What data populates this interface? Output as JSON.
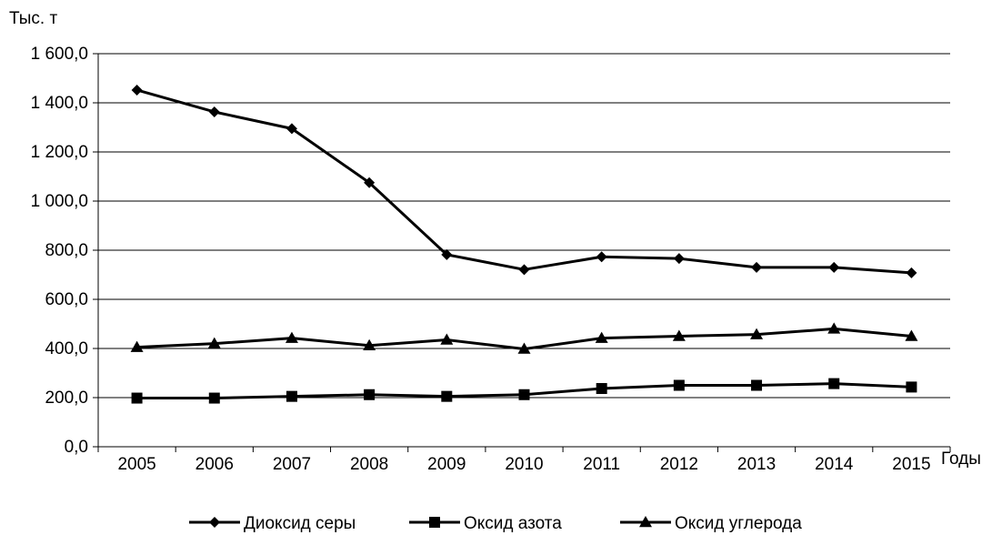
{
  "chart_data": {
    "type": "line",
    "ylabel": "Тыс. т",
    "xlabel": "Годы",
    "categories": [
      "2005",
      "2006",
      "2007",
      "2008",
      "2009",
      "2010",
      "2011",
      "2012",
      "2013",
      "2014",
      "2015"
    ],
    "ylim": [
      0,
      1600
    ],
    "yticks": [
      0,
      200,
      400,
      600,
      800,
      1000,
      1200,
      1400,
      1600
    ],
    "ytick_labels": [
      "0,0",
      "200,0",
      "400,0",
      "600,0",
      "800,0",
      "1 000,0",
      "1 200,0",
      "1 400,0",
      "1 600,0"
    ],
    "grid": true,
    "legend_position": "bottom",
    "series": [
      {
        "name": "Диоксид серы",
        "marker": "diamond",
        "color": "#000000",
        "values": [
          1452,
          1363,
          1295,
          1075,
          782,
          721,
          773,
          766,
          730,
          730,
          708
        ]
      },
      {
        "name": "Оксид азота",
        "marker": "square",
        "color": "#000000",
        "values": [
          198,
          198,
          205,
          212,
          205,
          212,
          237,
          250,
          250,
          257,
          243
        ]
      },
      {
        "name": "Оксид углерода",
        "marker": "triangle",
        "color": "#000000",
        "values": [
          405,
          420,
          442,
          412,
          435,
          398,
          442,
          450,
          457,
          480,
          450
        ]
      }
    ]
  }
}
